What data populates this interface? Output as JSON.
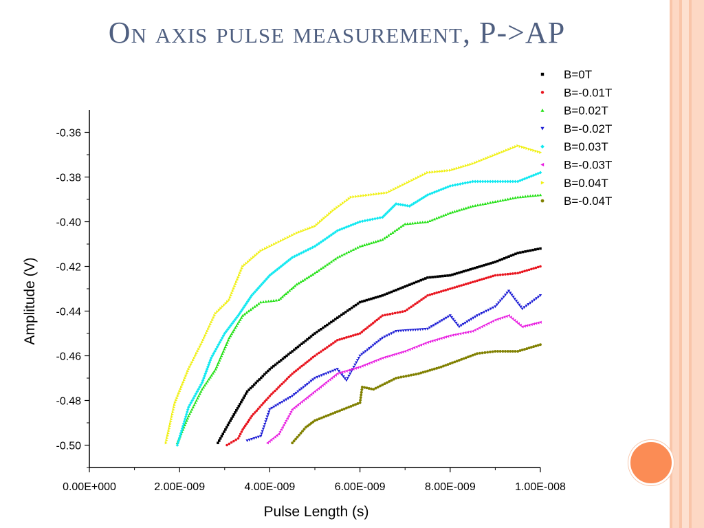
{
  "slide": {
    "title": "On axis pulse measurement, P->AP",
    "accent_colors": [
      "#f9c5a9",
      "#fdd8c4",
      "#fb8c55"
    ],
    "decorative_circle_color": "#fb8c55"
  },
  "chart_data": {
    "type": "scatter",
    "title": "",
    "xlabel": "Pulse Length (s)",
    "ylabel": "Amplitude (V)",
    "xlim": [
      0,
      1e-08
    ],
    "ylim": [
      -0.51,
      -0.35
    ],
    "xticks": [
      0,
      2e-09,
      4e-09,
      6e-09,
      8e-09,
      1e-08
    ],
    "xtick_labels": [
      "0.00E+000",
      "2.00E-009",
      "4.00E-009",
      "6.00E-009",
      "8.00E-009",
      "1.00E-008"
    ],
    "yticks": [
      -0.5,
      -0.48,
      -0.46,
      -0.44,
      -0.42,
      -0.4,
      -0.38,
      -0.36
    ],
    "ytick_labels": [
      "-0.50",
      "-0.48",
      "-0.46",
      "-0.44",
      "-0.42",
      "-0.40",
      "-0.38",
      "-0.36"
    ],
    "grid": false,
    "legend_position": "top-right, outside plot",
    "series": [
      {
        "name": "B=0T",
        "color": "#000000",
        "marker": "square",
        "x": [
          2.85e-09,
          3.1e-09,
          3.5e-09,
          4e-09,
          4.5e-09,
          5e-09,
          5.5e-09,
          6e-09,
          6.5e-09,
          7e-09,
          7.5e-09,
          8e-09,
          8.5e-09,
          9e-09,
          9.5e-09,
          1e-08
        ],
        "y": [
          -0.499,
          -0.49,
          -0.476,
          -0.466,
          -0.458,
          -0.45,
          -0.443,
          -0.436,
          -0.433,
          -0.429,
          -0.425,
          -0.424,
          -0.421,
          -0.418,
          -0.414,
          -0.412
        ]
      },
      {
        "name": "B=-0.01T",
        "color": "#e8141e",
        "marker": "circle",
        "x": [
          3.05e-09,
          3.3e-09,
          3.4e-09,
          3.6e-09,
          4e-09,
          4.5e-09,
          5e-09,
          5.5e-09,
          6e-09,
          6.5e-09,
          7e-09,
          7.5e-09,
          8e-09,
          8.5e-09,
          9e-09,
          9.5e-09,
          1e-08
        ],
        "y": [
          -0.5,
          -0.497,
          -0.493,
          -0.487,
          -0.478,
          -0.468,
          -0.46,
          -0.453,
          -0.45,
          -0.442,
          -0.44,
          -0.433,
          -0.43,
          -0.427,
          -0.424,
          -0.423,
          -0.42
        ]
      },
      {
        "name": "B=0.02T",
        "color": "#22e014",
        "marker": "triangle-up",
        "x": [
          1.95e-09,
          2.2e-09,
          2.5e-09,
          2.8e-09,
          3.1e-09,
          3.4e-09,
          3.8e-09,
          4.2e-09,
          4.6e-09,
          5e-09,
          5.5e-09,
          6e-09,
          6.5e-09,
          7e-09,
          7.5e-09,
          8e-09,
          8.5e-09,
          9e-09,
          9.5e-09,
          1e-08
        ],
        "y": [
          -0.499,
          -0.487,
          -0.475,
          -0.466,
          -0.452,
          -0.442,
          -0.436,
          -0.435,
          -0.428,
          -0.423,
          -0.416,
          -0.411,
          -0.408,
          -0.401,
          -0.4,
          -0.396,
          -0.393,
          -0.391,
          -0.389,
          -0.388
        ]
      },
      {
        "name": "B=-0.02T",
        "color": "#1c1cd4",
        "marker": "triangle-down",
        "x": [
          3.5e-09,
          3.8e-09,
          4e-09,
          4.5e-09,
          5e-09,
          5.5e-09,
          5.7e-09,
          6e-09,
          6.5e-09,
          6.8e-09,
          7.5e-09,
          8e-09,
          8.2e-09,
          8.6e-09,
          9e-09,
          9.3e-09,
          9.6e-09,
          1e-08
        ],
        "y": [
          -0.498,
          -0.496,
          -0.484,
          -0.478,
          -0.47,
          -0.466,
          -0.471,
          -0.46,
          -0.452,
          -0.449,
          -0.448,
          -0.442,
          -0.447,
          -0.442,
          -0.438,
          -0.431,
          -0.439,
          -0.433
        ]
      },
      {
        "name": "B=0.03T",
        "color": "#10e8f0",
        "marker": "diamond",
        "x": [
          1.95e-09,
          2.2e-09,
          2.5e-09,
          2.7e-09,
          3e-09,
          3.3e-09,
          3.6e-09,
          4e-09,
          4.5e-09,
          5e-09,
          5.5e-09,
          6e-09,
          6.5e-09,
          6.8e-09,
          7.1e-09,
          7.5e-09,
          8e-09,
          8.5e-09,
          9e-09,
          9.5e-09,
          1e-08
        ],
        "y": [
          -0.5,
          -0.483,
          -0.472,
          -0.461,
          -0.45,
          -0.442,
          -0.433,
          -0.424,
          -0.416,
          -0.411,
          -0.404,
          -0.4,
          -0.398,
          -0.392,
          -0.393,
          -0.388,
          -0.384,
          -0.382,
          -0.382,
          -0.382,
          -0.378
        ]
      },
      {
        "name": "B=-0.03T",
        "color": "#e81ee0",
        "marker": "triangle-left",
        "x": [
          3.95e-09,
          4.2e-09,
          4.5e-09,
          5e-09,
          5.5e-09,
          6e-09,
          6.5e-09,
          7e-09,
          7.5e-09,
          8e-09,
          8.5e-09,
          9e-09,
          9.3e-09,
          9.6e-09,
          1e-08
        ],
        "y": [
          -0.499,
          -0.495,
          -0.484,
          -0.476,
          -0.468,
          -0.465,
          -0.461,
          -0.458,
          -0.454,
          -0.451,
          -0.449,
          -0.444,
          -0.442,
          -0.447,
          -0.445
        ]
      },
      {
        "name": "B=0.04T",
        "color": "#f0f014",
        "marker": "triangle-right",
        "x": [
          1.7e-09,
          1.9e-09,
          2.2e-09,
          2.5e-09,
          2.8e-09,
          3.1e-09,
          3.4e-09,
          3.8e-09,
          4.2e-09,
          4.6e-09,
          5e-09,
          5.4e-09,
          5.8e-09,
          6.2e-09,
          6.6e-09,
          7e-09,
          7.5e-09,
          8e-09,
          8.5e-09,
          9e-09,
          9.5e-09,
          1e-08
        ],
        "y": [
          -0.499,
          -0.481,
          -0.466,
          -0.454,
          -0.441,
          -0.435,
          -0.42,
          -0.413,
          -0.409,
          -0.405,
          -0.402,
          -0.395,
          -0.389,
          -0.388,
          -0.387,
          -0.383,
          -0.378,
          -0.377,
          -0.374,
          -0.37,
          -0.366,
          -0.369
        ]
      },
      {
        "name": "B=-0.04T",
        "color": "#808000",
        "marker": "hexagon",
        "x": [
          4.5e-09,
          4.8e-09,
          5e-09,
          5.5e-09,
          6e-09,
          6.05e-09,
          6.3e-09,
          6.8e-09,
          7.3e-09,
          7.8e-09,
          8.2e-09,
          8.6e-09,
          9e-09,
          9.5e-09,
          1e-08
        ],
        "y": [
          -0.499,
          -0.492,
          -0.489,
          -0.485,
          -0.481,
          -0.474,
          -0.475,
          -0.47,
          -0.468,
          -0.465,
          -0.462,
          -0.459,
          -0.458,
          -0.458,
          -0.455
        ]
      }
    ]
  }
}
